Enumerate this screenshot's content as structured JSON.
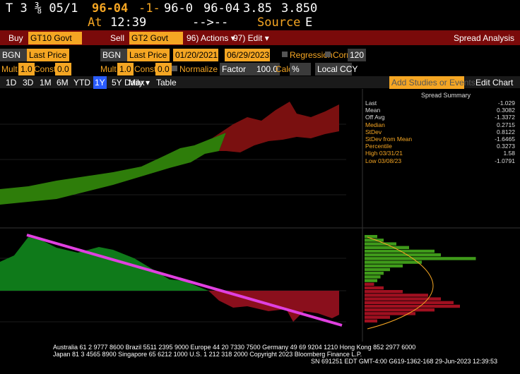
{
  "header": {
    "line1": [
      "T 3 ⅜ 05/1",
      "96-04",
      "-1-",
      "96-0",
      "96-04",
      "3.85",
      "3.850"
    ],
    "line2": [
      "At",
      "12:39",
      "-->--",
      "Source",
      "E"
    ]
  },
  "toolbar1": {
    "buy": "Buy",
    "buy_ticker": "GT10 Govt",
    "sell": "Sell",
    "sell_ticker": "GT2 Govt",
    "actions": "96) Actions ▾",
    "edit": "97) Edit ▾",
    "title": "Spread Analysis"
  },
  "toolbar2": {
    "source1": "BGN",
    "field1": "Last Price",
    "source2": "BGN",
    "field2": "Last Price",
    "start": "01/20/2021",
    "end": "06/29/2023",
    "regression": "Regression",
    "corr": "Corr",
    "corr_days": "120"
  },
  "toolbar3": {
    "mult1": "Mult",
    "mult1_value": "1.0",
    "const1": "Const",
    "const1_value": "0.0",
    "mult2": "Mult",
    "mult2_value": "1.0",
    "const2": "Const",
    "const2_value": "0.0",
    "normalize": "Normalize by",
    "normalize_mode": "Factor",
    "normalize_value": "100.0",
    "calc": "Calc",
    "calc_mode": "%",
    "currency": "Local CCY"
  },
  "toolbar4": {
    "periods": [
      "1D",
      "3D",
      "1M",
      "6M",
      "YTD",
      "1Y",
      "5Y",
      "Max"
    ],
    "frequency": "Daily ▾",
    "table": "Table",
    "studies": "Add Studies or Events",
    "edit_chart": "Edit Chart"
  },
  "summary": {
    "title": "Spread Summary",
    "rows": [
      [
        "Last",
        "-1.029"
      ],
      [
        "Mean",
        "0.3082"
      ],
      [
        "Off Avg",
        "-1.3372"
      ],
      [
        "Median",
        "0.2715"
      ],
      [
        "StDev",
        "0.8122"
      ],
      [
        "StDev from Mean",
        "-1.6465"
      ],
      [
        "Percentile",
        "0.3273"
      ],
      [
        "High 03/31/21",
        "1.58"
      ],
      [
        "Low 03/08/23",
        "-1.0791"
      ]
    ]
  },
  "footer": {
    "line1": "Australia 61 2 9777 8600 Brazil 5511 2395 9000 Europe 44 20 7330 7500 Germany 49 69 9204 1210 Hong Kong 852 2977 6000",
    "line2": "Japan 81 3 4565 8900     Singapore 65 6212 1000     U.S. 1 212 318 2000     Copyright 2023 Bloomberg Finance L.P.",
    "line3": "SN 691251 EDT  GMT-4:00 G619-1362-168 29-Jun-2023 12:39:53"
  }
}
